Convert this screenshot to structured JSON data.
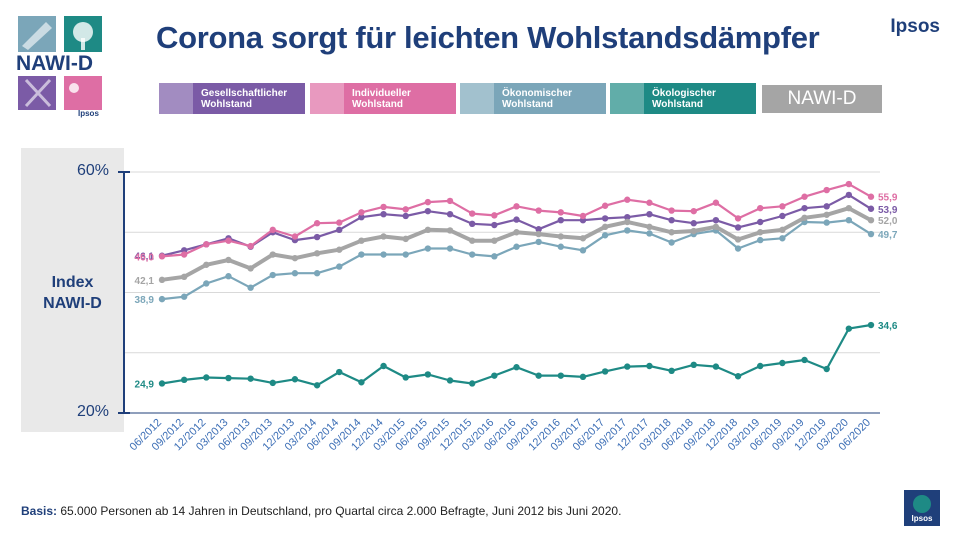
{
  "header": {
    "title": "Corona sorgt für leichten Wohlstandsdämpfer",
    "brand": "Ipsos",
    "logo_text": "NAWI-D",
    "logo_sub": "Ipsos"
  },
  "legend": [
    {
      "label_line1": "Gesellschaftlicher",
      "label_line2": "Wohlstand",
      "color": "#7b5ba6"
    },
    {
      "label_line1": "Individueller",
      "label_line2": "Wohlstand",
      "color": "#de6ea4"
    },
    {
      "label_line1": "Ökonomischer",
      "label_line2": "Wohlstand",
      "color": "#7ba6b9"
    },
    {
      "label_line1": "Ökologischer",
      "label_line2": "Wohlstand",
      "color": "#1e8a85"
    },
    {
      "label_line1": "NAWI-D",
      "label_line2": "",
      "color": "#a5a5a5"
    }
  ],
  "chart_data": {
    "type": "line",
    "ylabel_line1": "Index",
    "ylabel_line2": "NAWI-D",
    "y_tick_labels": [
      "60%",
      "20%"
    ],
    "ylim": [
      20,
      60
    ],
    "categories": [
      "06/2012",
      "09/2012",
      "12/2012",
      "03/2013",
      "06/2013",
      "09/2013",
      "12/2013",
      "03/2014",
      "06/2014",
      "09/2014",
      "12/2014",
      "03/2015",
      "06/2015",
      "09/2015",
      "12/2015",
      "03/2016",
      "06/2016",
      "09/2016",
      "12/2016",
      "03/2017",
      "06/2017",
      "09/2017",
      "12/2017",
      "03/2018",
      "06/2018",
      "09/2018",
      "12/2018",
      "03/2019",
      "06/2019",
      "09/2019",
      "12/2019",
      "03/2020",
      "06/2020"
    ],
    "x_tick_labels": [
      "06/2012",
      "09/2012",
      "12/2012",
      "03/2013",
      "06/2013",
      "09/2013",
      "12/2013",
      "03/2014",
      "06/2014",
      "09/2014",
      "12/2014",
      "03/2015",
      "06/2015",
      "09/2015",
      "12/2015",
      "03/2016",
      "06/2016",
      "09/2016",
      "12/2016",
      "03/2017",
      "06/2017",
      "09/2017",
      "12/2017",
      "03/2018",
      "06/2018",
      "09/2018",
      "12/2018",
      "03/2019",
      "06/2019",
      "09/2019",
      "12/2019",
      "03/2020",
      "06/2020"
    ],
    "series": [
      {
        "name": "Gesellschaftlicher Wohlstand",
        "color": "#7b5ba6",
        "start_label": "46,1",
        "end_label": "53,9",
        "values": [
          46.1,
          47.0,
          48.0,
          49.0,
          47.6,
          50.0,
          48.7,
          49.2,
          50.4,
          52.5,
          53.0,
          52.7,
          53.5,
          53.0,
          51.4,
          51.2,
          52.1,
          50.5,
          52.0,
          52.0,
          52.3,
          52.5,
          53.0,
          52.0,
          51.5,
          52.0,
          50.8,
          51.7,
          52.7,
          54.0,
          54.3,
          56.2,
          53.9
        ]
      },
      {
        "name": "Individueller Wohlstand",
        "color": "#de6ea4",
        "start_label": "46,0",
        "end_label": "55,9",
        "values": [
          46.0,
          46.3,
          48.0,
          48.6,
          47.7,
          50.4,
          49.3,
          51.5,
          51.6,
          53.3,
          54.2,
          53.8,
          55.0,
          55.2,
          53.1,
          52.8,
          54.3,
          53.6,
          53.3,
          52.7,
          54.4,
          55.4,
          54.9,
          53.6,
          53.5,
          54.9,
          52.3,
          54.0,
          54.3,
          55.9,
          57.0,
          58.0,
          55.9
        ]
      },
      {
        "name": "Ökonomischer Wohlstand",
        "color": "#7ba6b9",
        "start_label": "38,9",
        "end_label": "49,7",
        "values": [
          38.9,
          39.3,
          41.5,
          42.7,
          40.8,
          42.9,
          43.2,
          43.2,
          44.3,
          46.3,
          46.3,
          46.3,
          47.3,
          47.3,
          46.3,
          46.0,
          47.6,
          48.4,
          47.6,
          47.0,
          49.5,
          50.3,
          49.8,
          48.3,
          49.7,
          50.3,
          47.3,
          48.7,
          49.0,
          51.7,
          51.6,
          52.0,
          49.7
        ]
      },
      {
        "name": "NAWI-D",
        "color": "#a5a5a5",
        "start_label": "42,1",
        "end_label": "52,0",
        "values": [
          42.1,
          42.6,
          44.6,
          45.4,
          44.0,
          46.3,
          45.7,
          46.5,
          47.1,
          48.6,
          49.3,
          48.9,
          50.4,
          50.3,
          48.6,
          48.6,
          50.0,
          49.7,
          49.3,
          49.0,
          50.9,
          51.7,
          50.9,
          50.0,
          50.2,
          50.9,
          48.8,
          50.0,
          50.4,
          52.4,
          52.9,
          54.0,
          52.0
        ]
      },
      {
        "name": "Ökologischer Wohlstand",
        "color": "#1e8a85",
        "start_label": "24,9",
        "end_label": "34,6",
        "values": [
          24.9,
          25.5,
          25.9,
          25.8,
          25.7,
          25.0,
          25.6,
          24.6,
          26.8,
          25.1,
          27.8,
          25.9,
          26.4,
          25.4,
          24.9,
          26.2,
          27.6,
          26.2,
          26.2,
          26.0,
          26.9,
          27.7,
          27.8,
          27.0,
          28.0,
          27.7,
          26.1,
          27.8,
          28.3,
          28.8,
          27.3,
          34.0,
          34.6
        ]
      }
    ]
  },
  "footer": {
    "basis_label": "Basis:",
    "basis_text": " 65.000 Personen ab 14 Jahren in Deutschland, pro Quartal circa 2.000 Befragte, Juni 2012 bis Juni 2020."
  }
}
